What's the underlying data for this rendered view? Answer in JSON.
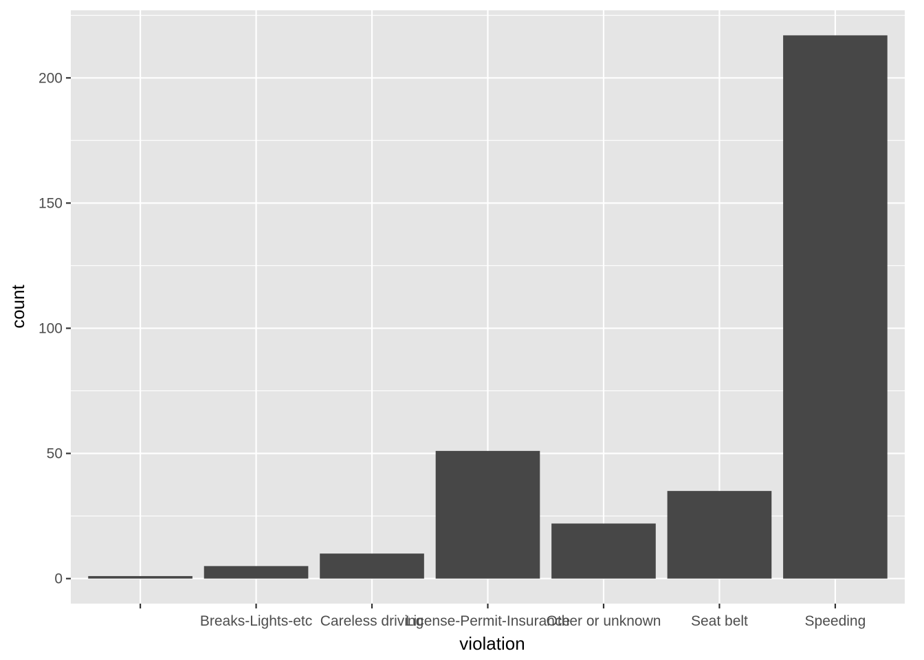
{
  "chart_data": {
    "type": "bar",
    "categories": [
      "",
      "Breaks-Lights-etc",
      "Careless driving",
      "License-Permit-Insurance",
      "Other or unknown",
      "Seat belt",
      "Speeding"
    ],
    "values": [
      1,
      5,
      10,
      51,
      22,
      35,
      217
    ],
    "xlabel": "violation",
    "ylabel": "count",
    "ylim": [
      -10,
      227
    ],
    "yticks": [
      0,
      50,
      100,
      150,
      200
    ],
    "grid": true,
    "legend": "none",
    "colors": {
      "panel": "#e5e5e5",
      "grid": "#ffffff",
      "bar": "#474747",
      "tick": "#333333"
    }
  }
}
